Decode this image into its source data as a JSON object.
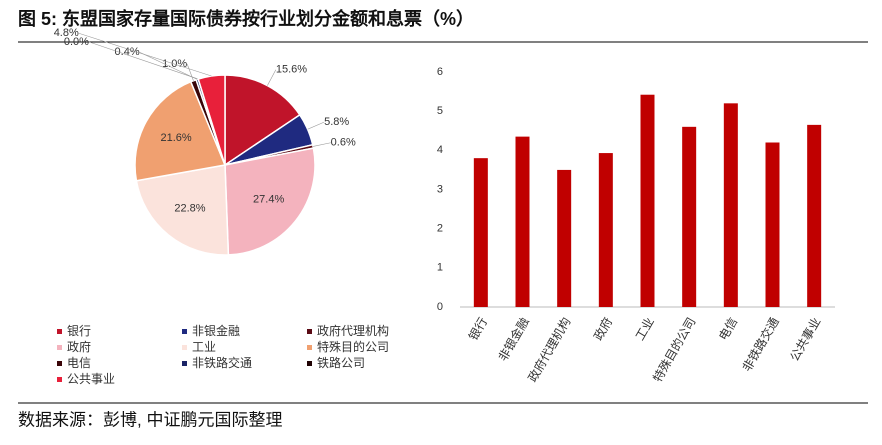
{
  "title": "图 5: 东盟国家存量国际债券按行业划分金额和息票（%）",
  "source": "数据来源：彭博, 中证鹏元国际整理",
  "chart_data": [
    {
      "type": "pie",
      "categories": [
        "银行",
        "非银金融",
        "政府代理机构",
        "政府",
        "工业",
        "特殊目的公司",
        "电信",
        "非铁路交通",
        "铁路公司",
        "公共事业"
      ],
      "values": [
        15.6,
        5.8,
        0.6,
        27.4,
        22.8,
        21.6,
        1.0,
        0.4,
        0.0,
        4.8
      ],
      "value_labels": [
        "15.6%",
        "5.8%",
        "0.6%",
        "27.4%",
        "22.8%",
        "21.6%",
        "1.0%",
        "0.4%",
        "0.0%",
        "4.8%"
      ],
      "colors": [
        "#c0142a",
        "#1f2a80",
        "#5a0a14",
        "#f4b3be",
        "#fbe3dc",
        "#f0a070",
        "#3a0508",
        "#1a2466",
        "#200304",
        "#e8203a"
      ],
      "legend": "bottom"
    },
    {
      "type": "bar",
      "categories": [
        "银行",
        "非银金融",
        "政府代理机构",
        "政府",
        "工业",
        "特殊目的公司",
        "电信",
        "非铁路交通",
        "公共事业"
      ],
      "values": [
        3.8,
        4.35,
        3.5,
        3.93,
        5.42,
        4.6,
        5.2,
        4.2,
        4.65
      ],
      "color": "#c00000",
      "ylim": [
        0,
        6
      ],
      "yticks": [
        0,
        1,
        2,
        3,
        4,
        5,
        6
      ],
      "grid": false
    }
  ]
}
